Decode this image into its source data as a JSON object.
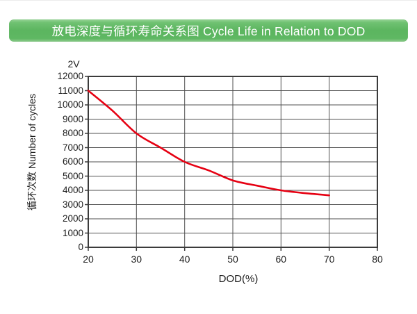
{
  "title_bar": {
    "label": "放电深度与循环寿命关系图 Cycle Life in Relation to DOD",
    "bg_color": "#5cb560",
    "text_color": "#ffffff"
  },
  "chart_data": {
    "type": "line",
    "title": "放电深度与循环寿命关系图 Cycle Life in Relation to DOD",
    "series_label": "2V",
    "xlabel": "DOD(%)",
    "ylabel": "循环次数 Number of cycles",
    "xlim": [
      20,
      80
    ],
    "ylim": [
      0,
      12000
    ],
    "x_ticks": [
      20,
      30,
      40,
      50,
      60,
      70,
      80
    ],
    "y_ticks": [
      0,
      1000,
      2000,
      3000,
      4000,
      5000,
      6000,
      7000,
      8000,
      9000,
      10000,
      11000,
      12000
    ],
    "grid": true,
    "legend_position": "none",
    "line_color": "#e60012",
    "grid_color": "#4f4f4f",
    "axis_color": "#3b3b3b",
    "text_color": "#1c1c1c",
    "series": [
      {
        "name": "2V",
        "points": [
          [
            20,
            11000
          ],
          [
            25,
            9600
          ],
          [
            30,
            8000
          ],
          [
            35,
            7000
          ],
          [
            40,
            6000
          ],
          [
            45,
            5400
          ],
          [
            50,
            4700
          ],
          [
            55,
            4330
          ],
          [
            60,
            4000
          ],
          [
            65,
            3800
          ],
          [
            70,
            3650
          ]
        ]
      }
    ]
  }
}
